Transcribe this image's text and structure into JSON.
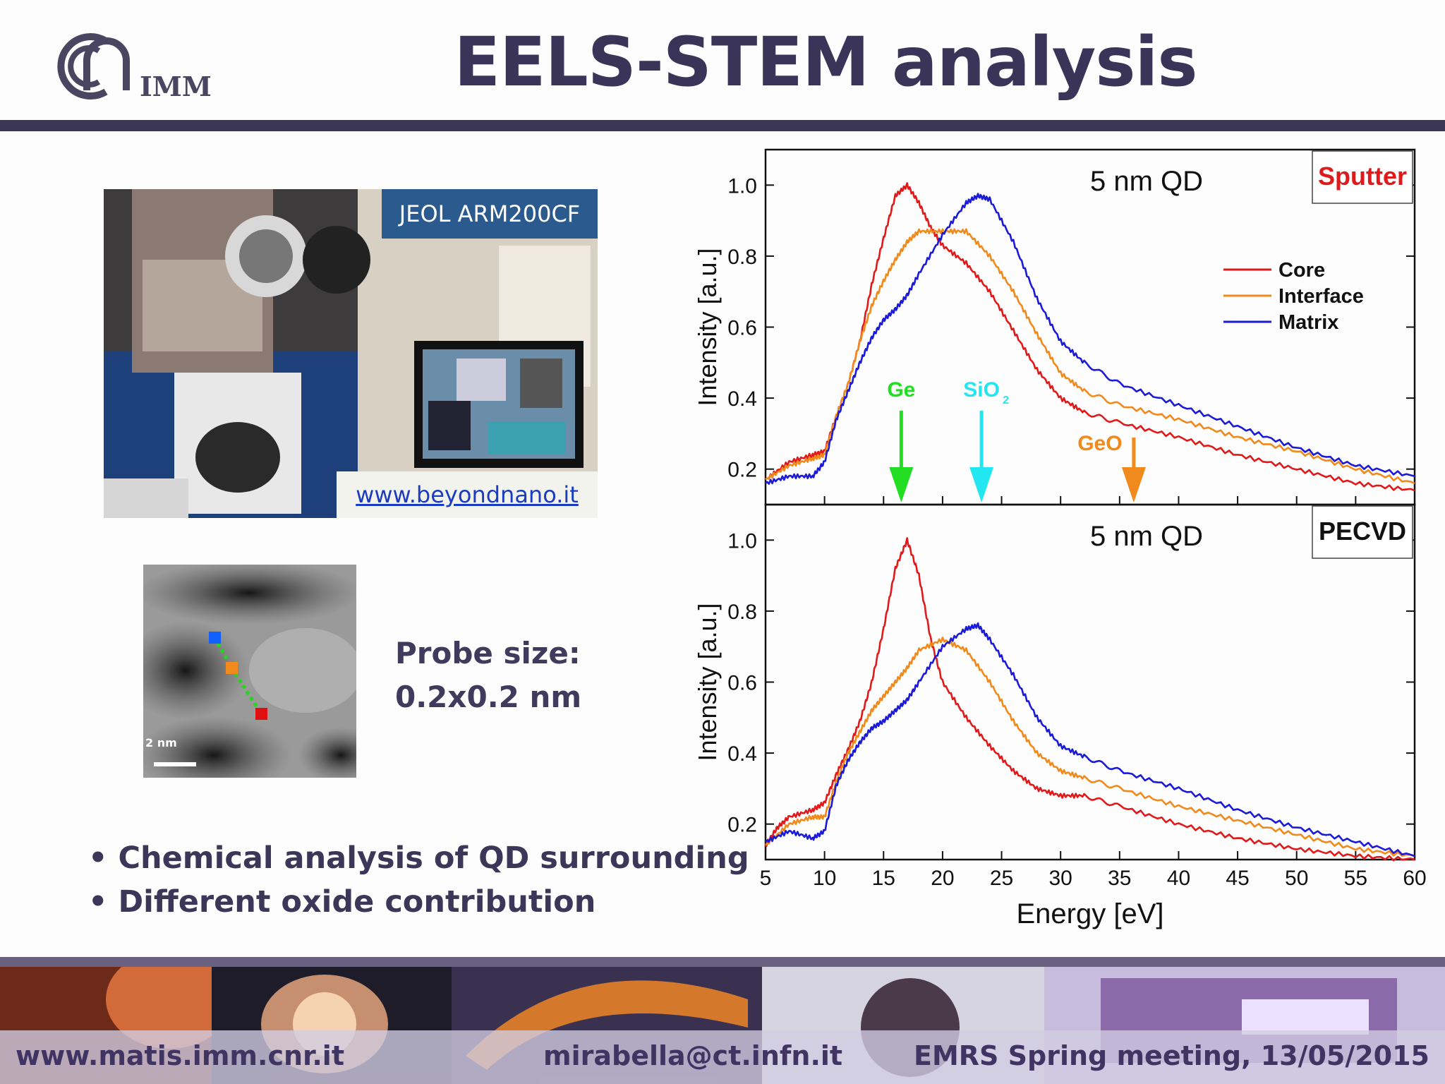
{
  "title": "EELS-STEM analysis",
  "logo": {
    "text": "IMM"
  },
  "photo": {
    "label": "JEOL ARM200CF",
    "link": "www.beyondnano.it"
  },
  "stem_image": {
    "scale_label": "2 nm"
  },
  "probe": {
    "line1": "Probe size:",
    "line2": "0.2x0.2 nm"
  },
  "bullets": [
    "• Chemical analysis of QD surrounding",
    "• Different oxide contribution"
  ],
  "footer": {
    "left": "www.matis.imm.cnr.it",
    "center": "mirabella@ct.infn.it",
    "right": "EMRS Spring meeting, 13/05/2015"
  },
  "colors": {
    "core": "#e01a1a",
    "interface": "#f08a1c",
    "matrix": "#1a1ad8",
    "title": "#3a3458"
  },
  "chart_data": [
    {
      "type": "line",
      "panel_label": "Sputter",
      "annotation": "5 nm QD",
      "xlabel": "Energy [eV]",
      "ylabel": "Intensity [a.u.]",
      "xlim": [
        5,
        60
      ],
      "ylim": [
        0.1,
        1.1
      ],
      "yticks": [
        "0.2",
        "0.4",
        "0.6",
        "0.8",
        "1.0"
      ],
      "xticks": [
        "5",
        "10",
        "15",
        "20",
        "25",
        "30",
        "35",
        "40",
        "45",
        "50",
        "55",
        "60"
      ],
      "legend": [
        "Core",
        "Interface",
        "Matrix"
      ],
      "markers": [
        {
          "label": "Ge",
          "x": 16.5,
          "color": "#22dd22"
        },
        {
          "label": "SiO",
          "sub": "2",
          "x": 23.3,
          "color": "#22e6f0"
        },
        {
          "label": "GeO",
          "x": 36.2,
          "color": "#f08a1c"
        }
      ],
      "series": [
        {
          "name": "Core",
          "x": [
            5,
            7,
            9,
            10,
            11,
            12,
            13,
            14,
            15,
            16,
            17,
            18,
            19,
            20,
            22,
            24,
            26,
            28,
            30,
            32,
            35,
            40,
            45,
            50,
            55,
            60
          ],
          "y": [
            0.17,
            0.22,
            0.24,
            0.25,
            0.35,
            0.44,
            0.56,
            0.72,
            0.85,
            0.97,
            1.0,
            0.95,
            0.88,
            0.83,
            0.78,
            0.7,
            0.59,
            0.48,
            0.4,
            0.36,
            0.33,
            0.29,
            0.24,
            0.2,
            0.16,
            0.14
          ]
        },
        {
          "name": "Interface",
          "x": [
            5,
            7,
            9,
            10,
            11,
            12,
            13,
            14,
            15,
            16,
            17,
            18,
            20,
            22,
            24,
            26,
            28,
            30,
            32,
            35,
            40,
            45,
            50,
            55,
            60
          ],
          "y": [
            0.17,
            0.21,
            0.23,
            0.24,
            0.35,
            0.44,
            0.56,
            0.66,
            0.73,
            0.79,
            0.84,
            0.87,
            0.87,
            0.87,
            0.8,
            0.7,
            0.58,
            0.47,
            0.42,
            0.38,
            0.34,
            0.29,
            0.25,
            0.2,
            0.16
          ]
        },
        {
          "name": "Matrix",
          "x": [
            5,
            7,
            9,
            10,
            11,
            12,
            13,
            14,
            15,
            16,
            17,
            18,
            20,
            22,
            23,
            24,
            26,
            28,
            30,
            32,
            35,
            40,
            45,
            50,
            55,
            60
          ],
          "y": [
            0.16,
            0.18,
            0.18,
            0.22,
            0.34,
            0.42,
            0.5,
            0.57,
            0.62,
            0.65,
            0.69,
            0.75,
            0.86,
            0.95,
            0.97,
            0.96,
            0.84,
            0.68,
            0.56,
            0.5,
            0.44,
            0.38,
            0.32,
            0.26,
            0.21,
            0.18
          ]
        }
      ]
    },
    {
      "type": "line",
      "panel_label": "PECVD",
      "annotation": "5 nm QD",
      "xlabel": "Energy [eV]",
      "ylabel": "Intensity [a.u.]",
      "xlim": [
        5,
        60
      ],
      "ylim": [
        0.1,
        1.1
      ],
      "yticks": [
        "0.2",
        "0.4",
        "0.6",
        "0.8",
        "1.0"
      ],
      "xticks": [
        "5",
        "10",
        "15",
        "20",
        "25",
        "30",
        "35",
        "40",
        "45",
        "50",
        "55",
        "60"
      ],
      "series": [
        {
          "name": "Core",
          "x": [
            5,
            6,
            7,
            9,
            10,
            11,
            12,
            13,
            14,
            15,
            16,
            17,
            18,
            19,
            20,
            22,
            24,
            26,
            28,
            30,
            32,
            35,
            40,
            45,
            50,
            55,
            60
          ],
          "y": [
            0.14,
            0.19,
            0.22,
            0.24,
            0.26,
            0.34,
            0.41,
            0.49,
            0.6,
            0.75,
            0.92,
            1.0,
            0.9,
            0.72,
            0.6,
            0.5,
            0.42,
            0.35,
            0.3,
            0.28,
            0.28,
            0.25,
            0.2,
            0.16,
            0.13,
            0.11,
            0.1
          ]
        },
        {
          "name": "Interface",
          "x": [
            5,
            7,
            9,
            10,
            11,
            12,
            13,
            14,
            15,
            16,
            17,
            18,
            20,
            22,
            24,
            26,
            28,
            30,
            32,
            35,
            40,
            45,
            50,
            55,
            60
          ],
          "y": [
            0.14,
            0.2,
            0.22,
            0.22,
            0.32,
            0.4,
            0.46,
            0.52,
            0.56,
            0.6,
            0.64,
            0.69,
            0.72,
            0.69,
            0.6,
            0.49,
            0.4,
            0.35,
            0.33,
            0.3,
            0.25,
            0.21,
            0.17,
            0.13,
            0.11
          ]
        },
        {
          "name": "Matrix",
          "x": [
            5,
            7,
            9,
            10,
            11,
            12,
            13,
            14,
            15,
            16,
            17,
            18,
            20,
            22,
            23,
            24,
            26,
            28,
            30,
            32,
            35,
            40,
            45,
            50,
            55,
            60
          ],
          "y": [
            0.15,
            0.18,
            0.16,
            0.18,
            0.31,
            0.38,
            0.43,
            0.47,
            0.49,
            0.52,
            0.55,
            0.6,
            0.7,
            0.75,
            0.76,
            0.72,
            0.62,
            0.5,
            0.42,
            0.39,
            0.35,
            0.3,
            0.24,
            0.19,
            0.15,
            0.11
          ]
        }
      ]
    }
  ]
}
